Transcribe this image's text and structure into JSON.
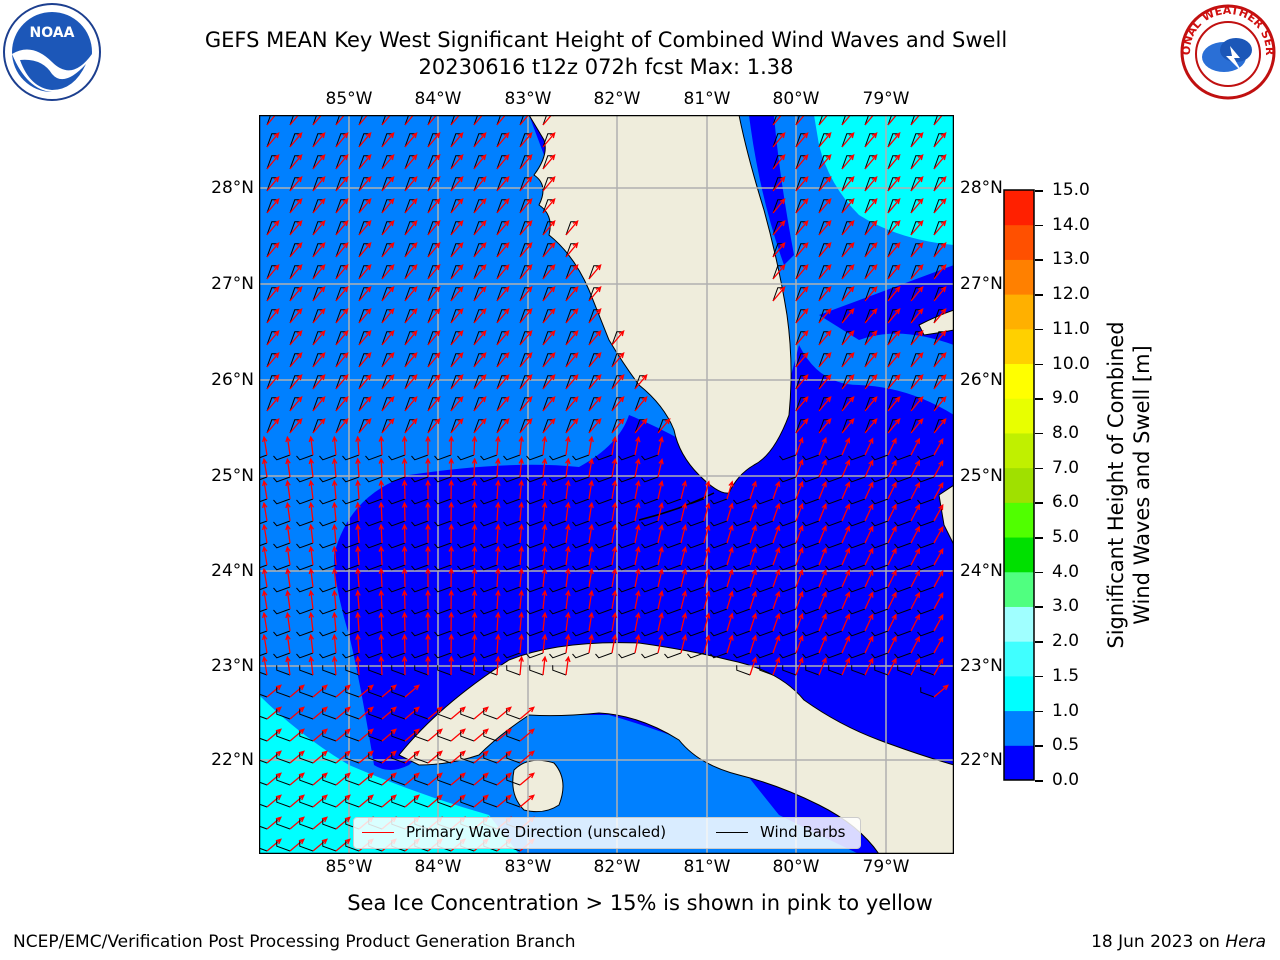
{
  "title_line1": "GEFS MEAN Key West Significant Height of Combined Wind Waves and Swell",
  "title_line2": "20230616 t12z 072h fcst   Max: 1.38",
  "lon_labels": [
    "85°W",
    "84°W",
    "83°W",
    "82°W",
    "81°W",
    "80°W",
    "79°W"
  ],
  "lat_labels": [
    "28°N",
    "27°N",
    "26°N",
    "25°N",
    "24°N",
    "23°N",
    "22°N"
  ],
  "colorbar": {
    "title_line1": "Significant Height of Combined",
    "title_line2": "Wind Waves and Swell [m]",
    "ticks": [
      "15.0",
      "14.0",
      "13.0",
      "12.0",
      "11.0",
      "10.0",
      "9.0",
      "8.0",
      "7.0",
      "6.0",
      "5.0",
      "4.0",
      "3.0",
      "2.0",
      "1.5",
      "1.0",
      "0.5",
      "0.0"
    ],
    "levels": [
      0.0,
      0.5,
      1.0,
      1.5,
      2.0,
      3.0,
      4.0,
      5.0,
      6.0,
      7.0,
      8.0,
      9.0,
      10.0,
      11.0,
      12.0,
      13.0,
      14.0,
      15.0
    ],
    "colors": [
      "#0000ff",
      "#0080ff",
      "#00ffff",
      "#40ffff",
      "#a0ffff",
      "#50ff80",
      "#00e000",
      "#50ff00",
      "#a0e000",
      "#c0f000",
      "#e8ff00",
      "#ffff00",
      "#ffd000",
      "#ffb000",
      "#ff8000",
      "#ff5000",
      "#ff2000",
      "#ff0000"
    ]
  },
  "legend": {
    "wave_dir": "Primary Wave Direction (unscaled)",
    "wave_color": "#ff0000",
    "wind_barbs": "Wind Barbs",
    "barb_color": "#000000"
  },
  "map_colors": {
    "land": "#efeddc",
    "band_0_0_5": "#0000ff",
    "band_0_5_1_0": "#0080ff",
    "band_1_0_1_5": "#00ffff",
    "grid": "#b0b0b0"
  },
  "footer_center": "Sea Ice Concentration > 15% is shown in pink to yellow",
  "footer_left": "NCEP/EMC/Verification Post Processing Product Generation Branch",
  "footer_right_prefix": "18 Jun 2023 on ",
  "footer_right_host": "Hera",
  "logos": {
    "noaa": "NOAA",
    "nws": "NATIONAL WEATHER SERVICE"
  }
}
